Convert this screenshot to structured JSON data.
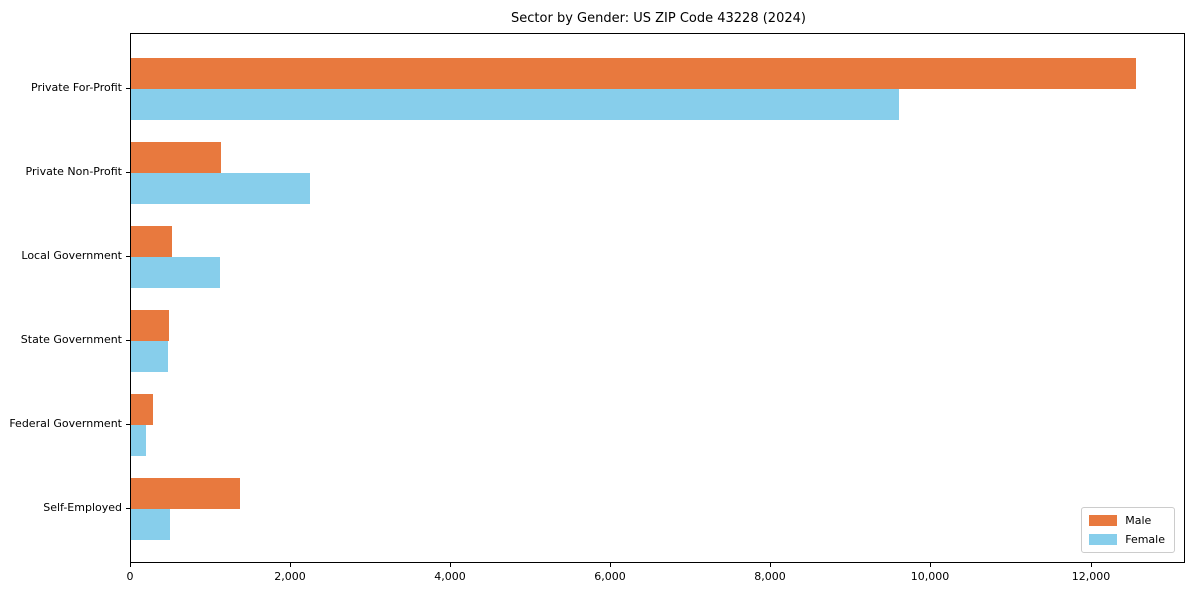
{
  "title": "Sector by Gender: US ZIP Code 43228 (2024)",
  "colors": {
    "male": "#e8793e",
    "female": "#87ceeb",
    "axis": "#000000",
    "legend_border": "#cccccc",
    "background": "#ffffff"
  },
  "legend": {
    "position": "lower right",
    "items": [
      {
        "label": "Male",
        "color": "#e8793e"
      },
      {
        "label": "Female",
        "color": "#87ceeb"
      }
    ]
  },
  "chart_data": {
    "type": "bar",
    "orientation": "horizontal",
    "title": "Sector by Gender: US ZIP Code 43228 (2024)",
    "categories": [
      "Private For-Profit",
      "Private Non-Profit",
      "Local Government",
      "State Government",
      "Federal Government",
      "Self-Employed"
    ],
    "series": [
      {
        "name": "Male",
        "color": "#e8793e",
        "values": [
          12560,
          1130,
          510,
          480,
          280,
          1360
        ]
      },
      {
        "name": "Female",
        "color": "#87ceeb",
        "values": [
          9590,
          2230,
          1110,
          460,
          190,
          490
        ]
      }
    ],
    "xlabel": "",
    "ylabel": "",
    "xlim": [
      0,
      13180
    ],
    "xticks": [
      0,
      2000,
      4000,
      6000,
      8000,
      10000,
      12000
    ],
    "xtick_labels": [
      "0",
      "2,000",
      "4,000",
      "6,000",
      "8,000",
      "10,000",
      "12,000"
    ],
    "grid": false,
    "legend_position": "lower right"
  }
}
